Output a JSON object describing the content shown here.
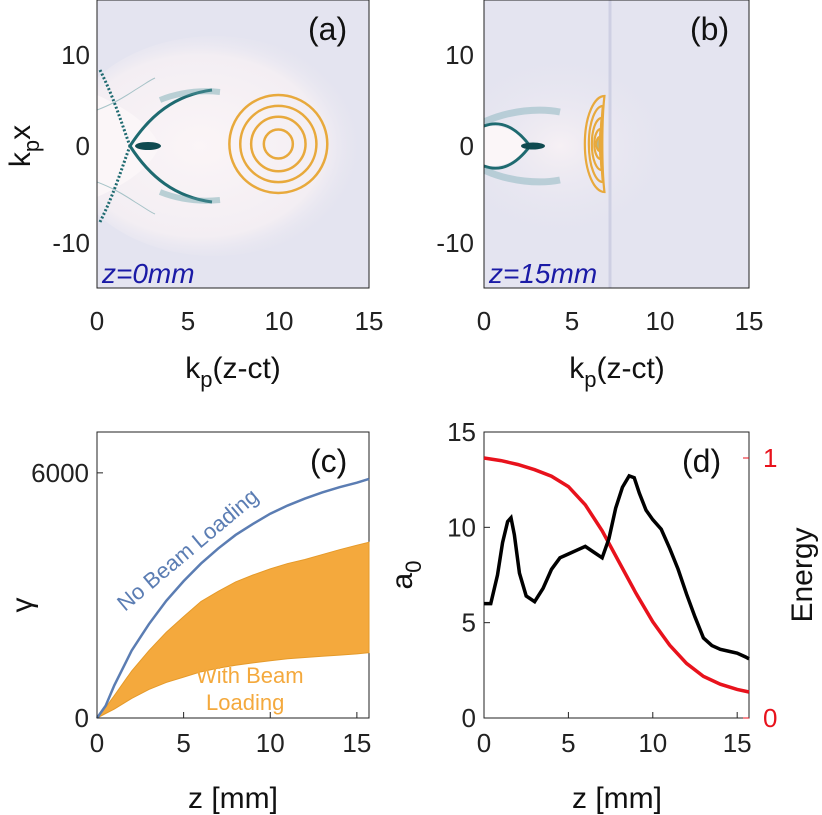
{
  "figure": {
    "colors": {
      "background_field": "#e4e4f0",
      "bubble": "#fbf4f6",
      "sheath": "#1e6a70",
      "laser_contour": "#e8a93c",
      "no_beam_loading": "#5b7db3",
      "with_beam_loading": "#f4a93d",
      "a0_line": "#000000",
      "energy_line": "#e8121c"
    }
  },
  "panels": [
    {
      "id": "a",
      "label": "(a)",
      "z_label": "z=0mm",
      "xlabel_main": "k",
      "xlabel_sub": "p",
      "xlabel_rest": "(z-ct)",
      "ylabel_main": "k",
      "ylabel_sub": "p",
      "ylabel_rest": "x",
      "xticks": [
        "0",
        "5",
        "10",
        "15"
      ],
      "yticks": [
        "10",
        "0",
        "-10"
      ]
    },
    {
      "id": "b",
      "label": "(b)",
      "z_label": "z=15mm",
      "xlabel_main": "k",
      "xlabel_sub": "p",
      "xlabel_rest": "(z-ct)",
      "xticks": [
        "0",
        "5",
        "10",
        "15"
      ],
      "yticks": [
        "10",
        "0",
        "-10"
      ]
    }
  ],
  "chart_data": [
    {
      "panel": "a",
      "type": "heatmap",
      "title": "(a)",
      "annotation": "z=0mm",
      "xlabel": "k_p(z-ct)",
      "ylabel": "k_p x",
      "xlim": [
        0,
        15
      ],
      "ylim": [
        -15,
        15
      ],
      "laser_center": [
        10,
        0
      ],
      "laser_contour_radii": [
        0.8,
        1.5,
        2.1,
        2.7
      ],
      "bunch_center": [
        2.7,
        0
      ]
    },
    {
      "panel": "b",
      "type": "heatmap",
      "title": "(b)",
      "annotation": "z=15mm",
      "xlabel": "k_p(z-ct)",
      "ylabel": "",
      "xlim": [
        0,
        15
      ],
      "ylim": [
        -15,
        15
      ],
      "laser_center": [
        6.5,
        0
      ],
      "bunch_center": [
        2.7,
        0
      ]
    },
    {
      "panel": "c",
      "type": "area",
      "title": "(c)",
      "xlabel": "z [mm]",
      "ylabel": "γ",
      "xlim": [
        0,
        15.7
      ],
      "ylim": [
        0,
        7000
      ],
      "xticks": [
        "0",
        "5",
        "10",
        "15"
      ],
      "yticks": [
        "0",
        "6000"
      ],
      "series": [
        {
          "name": "No Beam Loading",
          "x": [
            0,
            0.5,
            1,
            2,
            3,
            4,
            5,
            6,
            7,
            8,
            9,
            10,
            11,
            12,
            13,
            14,
            15,
            15.7
          ],
          "values": [
            0,
            300,
            800,
            1650,
            2300,
            2870,
            3350,
            3780,
            4150,
            4480,
            4750,
            5000,
            5200,
            5370,
            5520,
            5650,
            5760,
            5850
          ]
        },
        {
          "name": "With Beam Loading",
          "x": [
            0,
            0.5,
            1,
            2,
            3,
            4,
            5,
            6,
            7,
            8,
            9,
            10,
            11,
            12,
            13,
            14,
            15,
            15.7
          ],
          "upper": [
            0,
            260,
            550,
            1150,
            1650,
            2100,
            2480,
            2850,
            3100,
            3330,
            3500,
            3650,
            3780,
            3880,
            4000,
            4120,
            4230,
            4300
          ],
          "lower": [
            0,
            110,
            220,
            480,
            700,
            870,
            1000,
            1130,
            1220,
            1290,
            1350,
            1400,
            1450,
            1480,
            1510,
            1540,
            1570,
            1600
          ]
        }
      ],
      "annotations": [
        "No Beam Loading",
        "With Beam",
        "Loading"
      ]
    },
    {
      "panel": "d",
      "type": "line",
      "title": "(d)",
      "xlabel": "z [mm]",
      "ylabel": "a",
      "ylabel_sub": "0",
      "ylabel_right": "Energy",
      "xlim": [
        0,
        15.7
      ],
      "ylim": [
        0,
        15
      ],
      "ylim_right": [
        0,
        1.1
      ],
      "xticks": [
        "0",
        "5",
        "10",
        "15"
      ],
      "yticks": [
        "0",
        "5",
        "10",
        "15"
      ],
      "yticks_right": [
        "0",
        "1"
      ],
      "series": [
        {
          "name": "a0",
          "axis": "left",
          "x": [
            0,
            0.4,
            0.8,
            1.1,
            1.4,
            1.6,
            1.8,
            2.1,
            2.5,
            3.0,
            3.5,
            4.0,
            4.5,
            5.0,
            5.5,
            6.0,
            6.5,
            7.0,
            7.4,
            7.8,
            8.2,
            8.6,
            8.9,
            9.2,
            9.6,
            10.0,
            10.5,
            11.0,
            11.5,
            12.0,
            12.5,
            13.0,
            13.5,
            14.0,
            14.5,
            15.0,
            15.5,
            15.7
          ],
          "values": [
            6.0,
            6.0,
            7.5,
            9.2,
            10.3,
            10.5,
            9.6,
            7.6,
            6.4,
            6.1,
            6.8,
            7.8,
            8.4,
            8.6,
            8.8,
            9.0,
            8.7,
            8.4,
            9.4,
            11.0,
            12.1,
            12.7,
            12.6,
            11.8,
            10.9,
            10.4,
            9.9,
            8.9,
            7.8,
            6.5,
            5.3,
            4.2,
            3.8,
            3.6,
            3.5,
            3.4,
            3.2,
            3.1
          ]
        },
        {
          "name": "Energy",
          "axis": "right",
          "x": [
            0,
            1,
            2,
            3,
            4,
            5,
            6,
            7,
            8,
            9,
            10,
            11,
            12,
            13,
            14,
            15,
            15.7
          ],
          "values": [
            1.0,
            0.99,
            0.975,
            0.955,
            0.93,
            0.89,
            0.82,
            0.72,
            0.6,
            0.48,
            0.37,
            0.28,
            0.21,
            0.16,
            0.13,
            0.11,
            0.1
          ]
        }
      ]
    }
  ]
}
